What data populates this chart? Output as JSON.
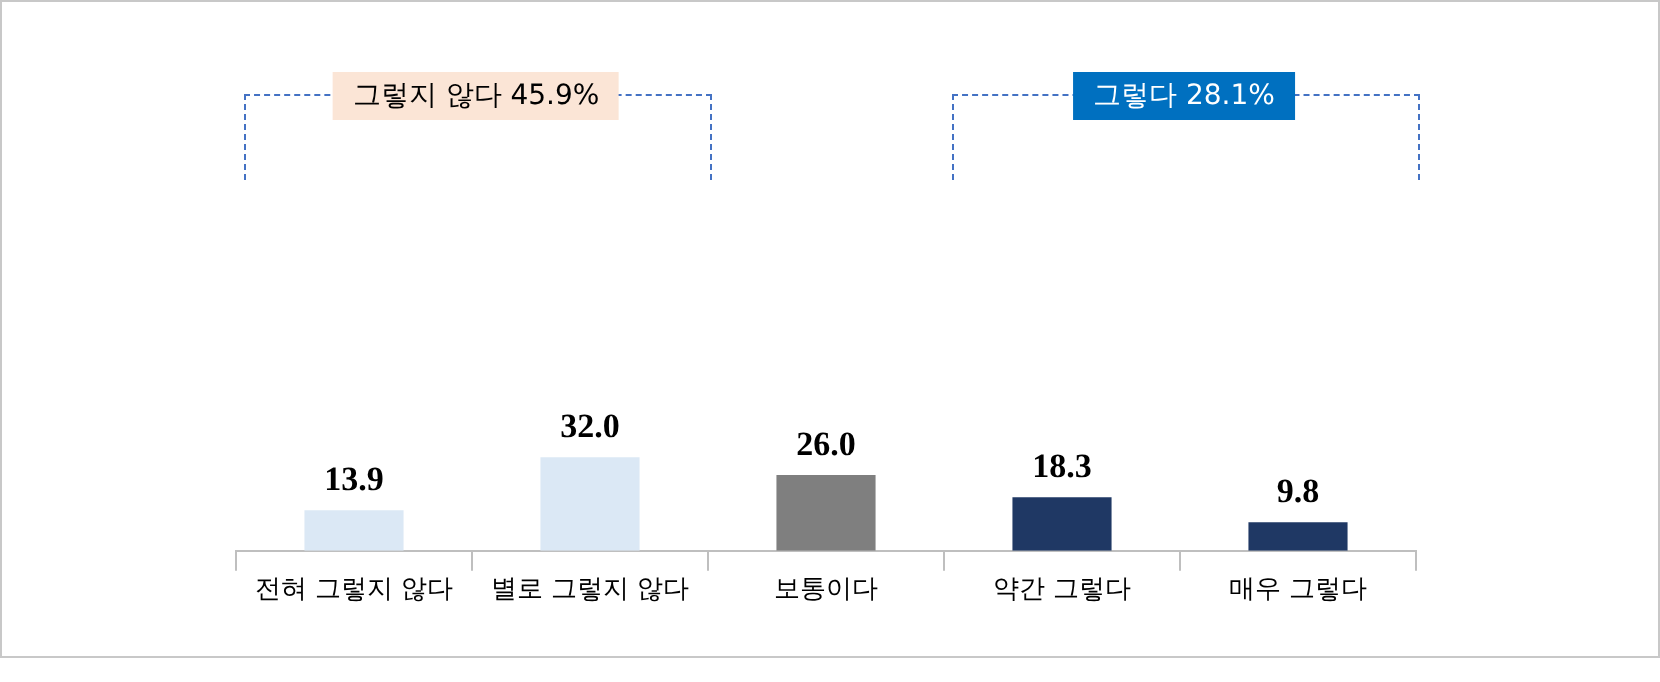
{
  "chart_data": {
    "type": "bar",
    "categories": [
      "전혀 그렇지 않다",
      "별로 그렇지 않다",
      "보통이다",
      "약간 그렇다",
      "매우 그렇다"
    ],
    "values": [
      13.9,
      32.0,
      26.0,
      18.3,
      9.8
    ],
    "colors": [
      "#dbe8f5",
      "#dbe8f5",
      "#7f7f7f",
      "#1f3864",
      "#1f3864"
    ],
    "value_labels": [
      "13.9",
      "32.0",
      "26.0",
      "18.3",
      "9.8"
    ],
    "annotations": [
      "그렇지 않다 45.9%",
      "그렇다 28.1%"
    ]
  }
}
